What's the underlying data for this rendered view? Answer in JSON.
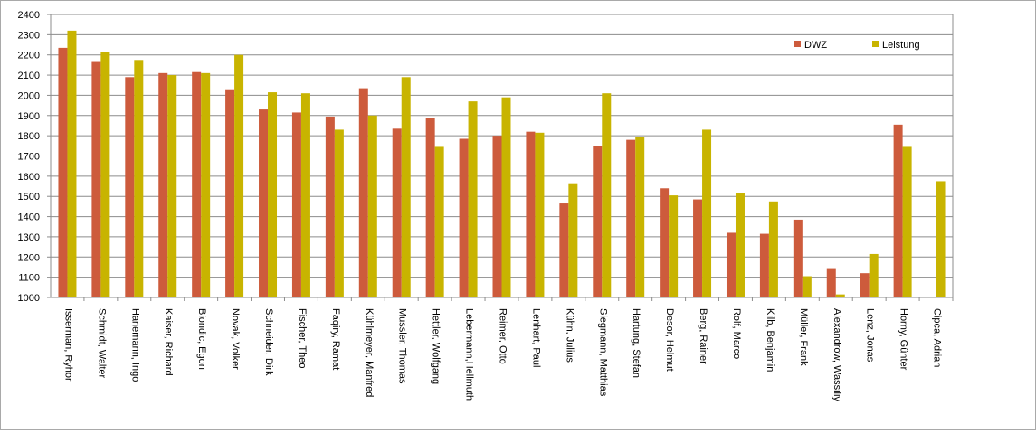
{
  "chart_data": {
    "type": "bar",
    "categories": [
      "Isserman, Ryhor",
      "Schmidt, Walter",
      "Hanemann, Ingo",
      "Kaiser, Richard",
      "Biondic, Egon",
      "Novak, Volker",
      "Schneider, Dirk",
      "Fischer, Theo",
      "Faqiry, Ramat",
      "Kühlmeyer, Manfred",
      "Mussler, Thomas",
      "Hettler, Wolfgang",
      "Lebermann,Hellmuth",
      "Reimer, Otto",
      "Lenhart, Paul",
      "Kühn, Julius",
      "Siegmann, Matthias",
      "Hartung, Stefan",
      "Desor, Helmut",
      "Berg, Rainer",
      "Rolf, Marco",
      "Kilb, Benjamin",
      "Müller, Frank",
      "Alexandrow, Wassiliy",
      "Lenz, Jonas",
      "Horny, Günter",
      "Cipca, Adrian"
    ],
    "series": [
      {
        "name": "DWZ",
        "color": "#cd5b3c",
        "values": [
          2235,
          2165,
          2090,
          2110,
          2115,
          2030,
          1930,
          1915,
          1895,
          2035,
          1835,
          1890,
          1785,
          1800,
          1820,
          1465,
          1750,
          1780,
          1540,
          1485,
          1320,
          1315,
          1385,
          1145,
          1120,
          1855,
          null
        ]
      },
      {
        "name": "Leistung",
        "color": "#c8b400",
        "values": [
          2320,
          2215,
          2175,
          2100,
          2110,
          2200,
          2015,
          2010,
          1830,
          1900,
          2090,
          1745,
          1970,
          1990,
          1815,
          1565,
          2010,
          1795,
          1505,
          1830,
          1515,
          1475,
          1105,
          1015,
          1215,
          1745,
          1575
        ]
      }
    ],
    "ylim": [
      1000,
      2400
    ],
    "yticks": [
      "1000",
      "1100",
      "1200",
      "1300",
      "1400",
      "1500",
      "1600",
      "1700",
      "1800",
      "1900",
      "2000",
      "2100",
      "2200",
      "2300",
      "2400"
    ],
    "grid": true,
    "legend_position": "top-right"
  }
}
